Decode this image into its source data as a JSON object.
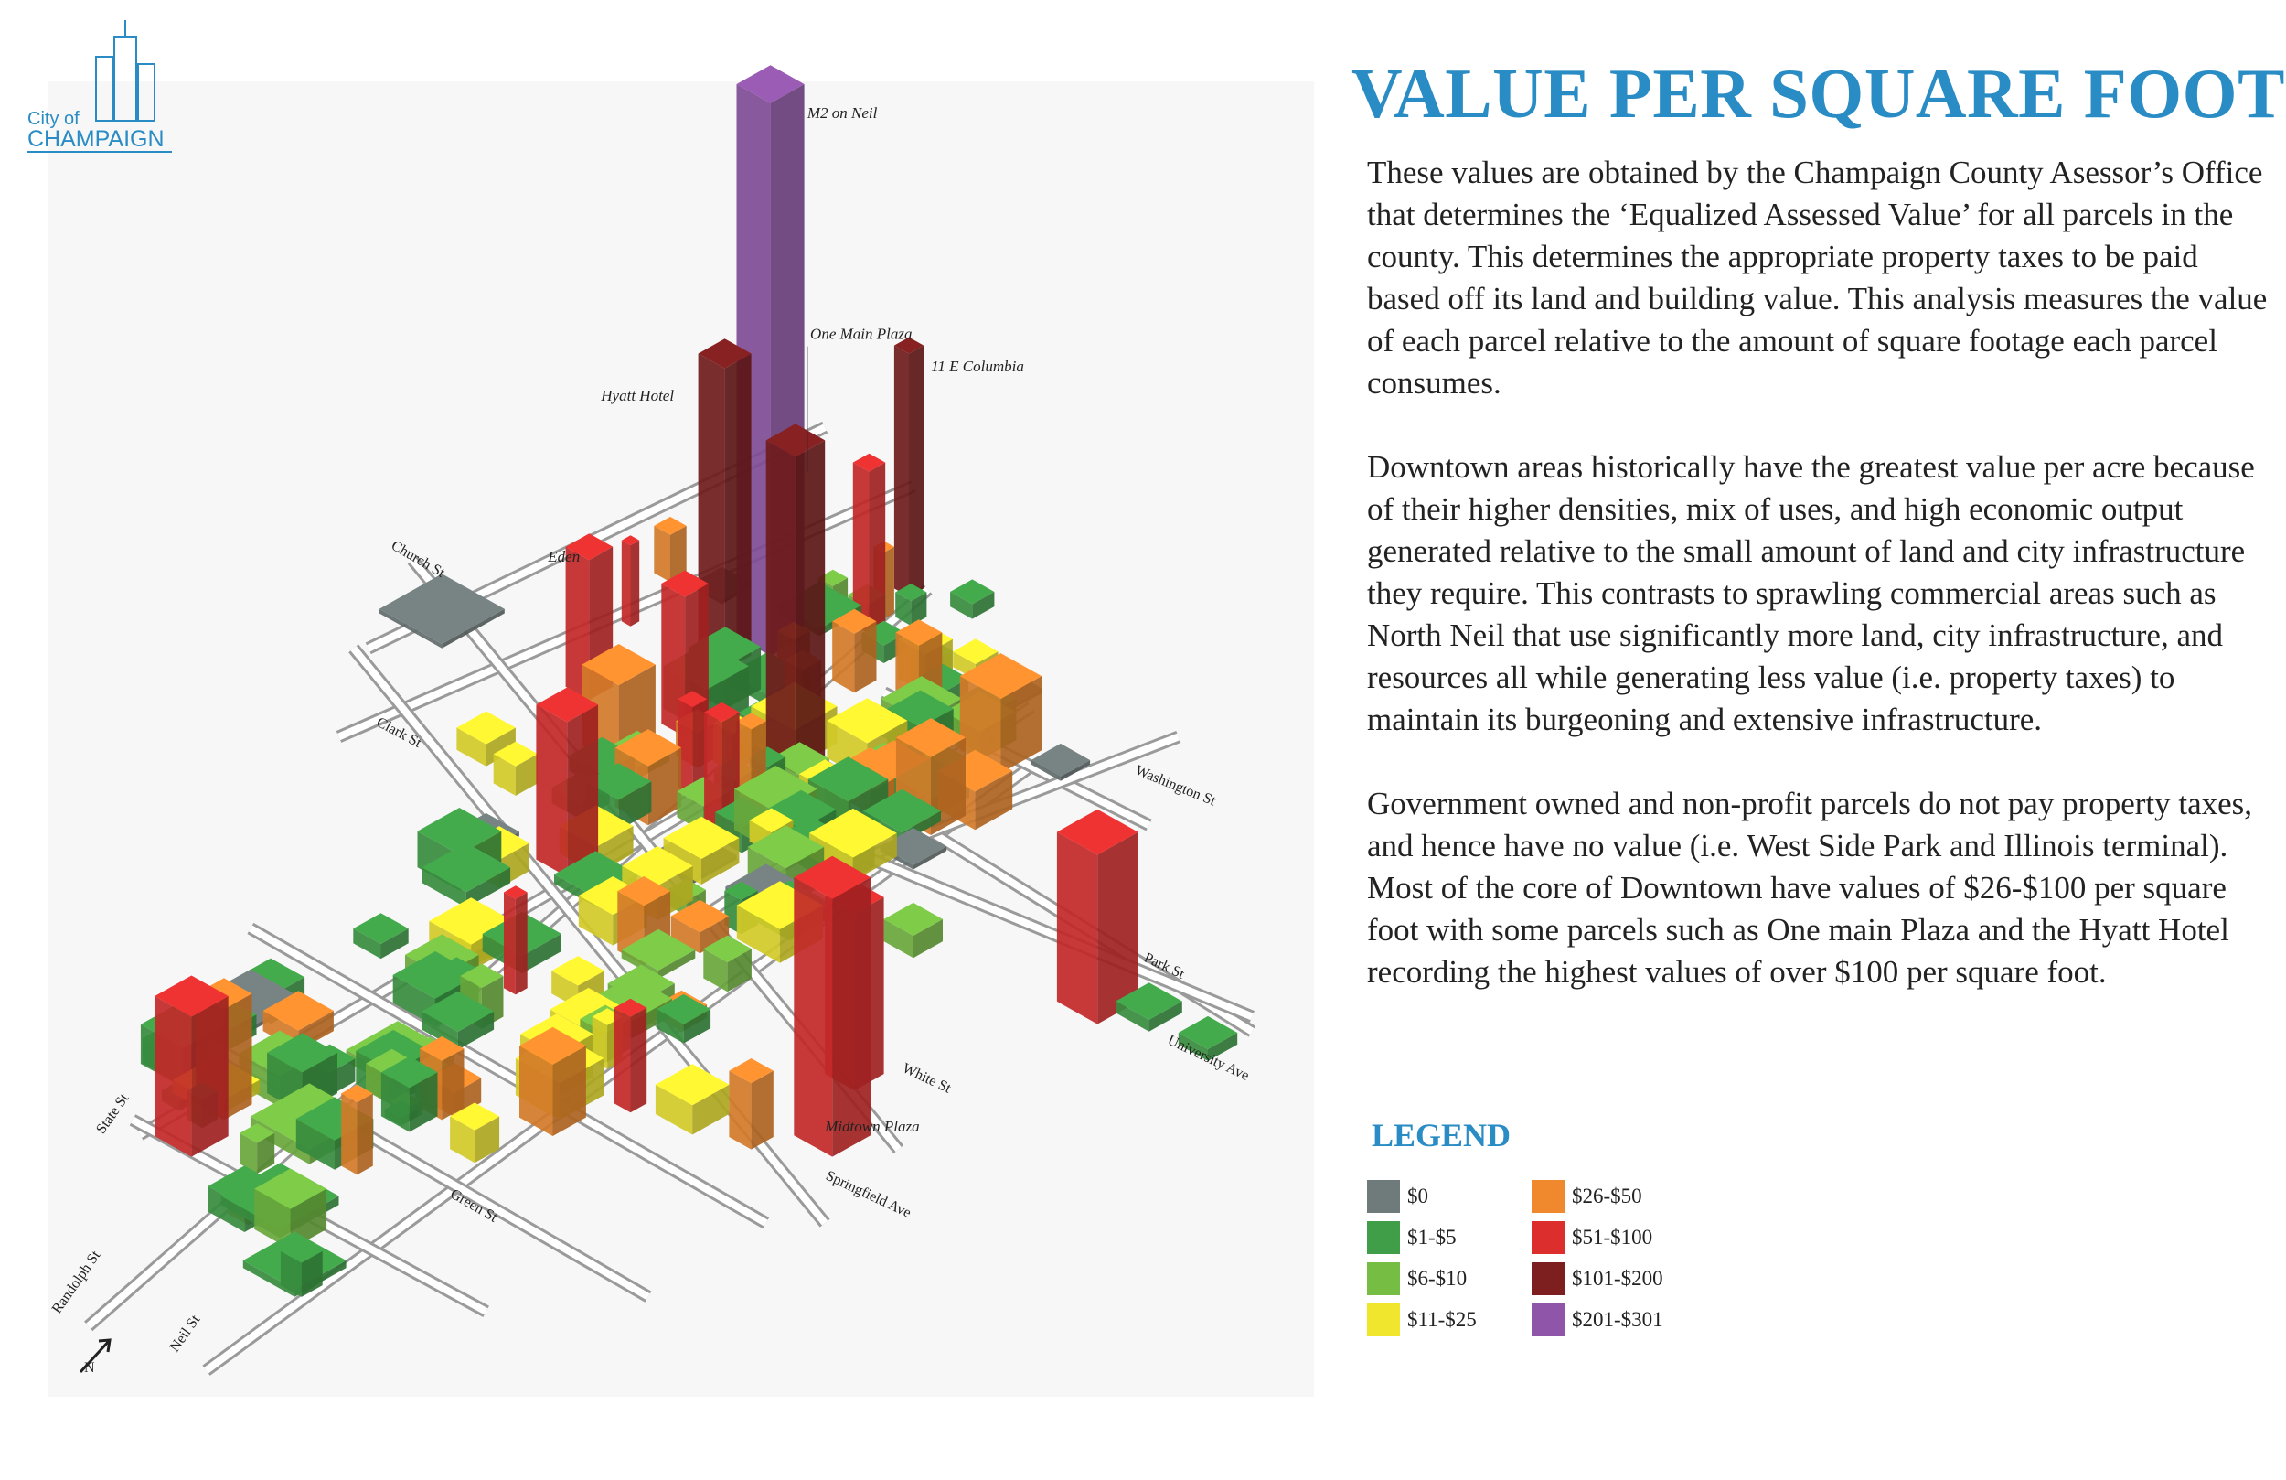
{
  "logo": {
    "line1": "City of",
    "line2": "CHAMPAIGN"
  },
  "title": "VALUE PER SQUARE FOOT",
  "paragraphs": [
    "These values are obtained by the Champaign County Asessor’s Office that determines the ‘Equalized Assessed Value’ for all parcels in the county. This determines the appropriate property taxes to be paid based off its land and building value. This analysis measures the value of each parcel relative to the amount of square footage each parcel consumes.",
    "Downtown areas historically have the greatest value per acre because of their higher densities, mix of uses, and high economic output generated relative to the small amount of land and city infrastructure they require. This contrasts to sprawling commercial areas such as North Neil that use significantly more land, city infrastructure, and resources all while generating less value (i.e. property taxes) to maintain its burgeoning and extensive infrastructure.",
    "Government owned and non-profit parcels do not pay property taxes, and hence have no value (i.e. West Side Park and Illinois terminal). Most of the core of Downtown have values of $26-$100 per square foot with some parcels such as One main Plaza and the Hyatt Hotel recording the highest values of over $100 per square foot."
  ],
  "legend": {
    "title": "LEGEND",
    "items": [
      {
        "label": "$0",
        "color": "#6f7a7a"
      },
      {
        "label": "$1-$5",
        "color": "#3f9e47"
      },
      {
        "label": "$6-$10",
        "color": "#76bd43"
      },
      {
        "label": "$11-$25",
        "color": "#f0e62e"
      },
      {
        "label": "$26-$50",
        "color": "#f0892d"
      },
      {
        "label": "$51-$100",
        "color": "#dd2e2e"
      },
      {
        "label": "$101-$200",
        "color": "#7e1f1f"
      },
      {
        "label": "$201-$301",
        "color": "#8f55a8"
      }
    ]
  },
  "map": {
    "labels": {
      "buildings": [
        "M2 on Neil",
        "One Main Plaza",
        "11 E Columbia",
        "Hyatt Hotel",
        "Eden",
        "Midtown Plaza"
      ],
      "streets": [
        "Church St",
        "Clark St",
        "Washington St",
        "Park St",
        "University Ave",
        "White St",
        "Springfield Ave",
        "Green St",
        "State St",
        "Randolph St",
        "Neil St"
      ]
    },
    "north": "N"
  }
}
